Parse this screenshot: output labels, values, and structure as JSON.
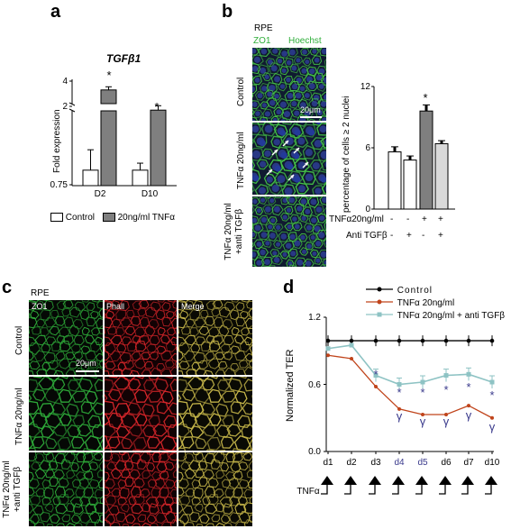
{
  "panels": {
    "a": {
      "letter": "a",
      "gene": "TGFβ1",
      "ylabel": "Fold expression",
      "yticks": [
        "4",
        "2",
        "0.75"
      ],
      "categories": [
        "D2",
        "D10"
      ],
      "star": "*",
      "legend": [
        "Control",
        "20ng/ml TNFα"
      ]
    },
    "b": {
      "letter": "b",
      "cell": "RPE",
      "stain1": "ZO1",
      "stain2": "Hoechst",
      "rows": [
        "Control",
        "TNFα 20ng/ml",
        "TNFα 20ng/ml +anti TGFβ"
      ],
      "scale": "20μm",
      "ylabel": "percentage of cells ≥ 2 nuclei",
      "yticks": [
        "12",
        "6",
        "0"
      ],
      "star": "*",
      "cond_labels": [
        "TNFα20ng/ml",
        "Anti TGFβ"
      ],
      "cond_tnf": [
        "-",
        "-",
        "+",
        "+"
      ],
      "cond_anti": [
        "-",
        "+",
        "-",
        "+"
      ]
    },
    "c": {
      "letter": "c",
      "cell": "RPE",
      "cols": [
        "ZO1",
        "Phall",
        "Merge"
      ],
      "rows": [
        "Control",
        "TNFα 20ng/ml",
        "TNFα 20ng/ml +anti TGFβ"
      ],
      "scale": "20μm"
    },
    "d": {
      "letter": "d",
      "ylabel": "Normalized TER",
      "yticks": [
        "1.2",
        "0.6",
        "0.0"
      ],
      "days": [
        "d1",
        "d2",
        "d3",
        "d4",
        "d5",
        "d6",
        "d7",
        "d10"
      ],
      "xrow": "TNFα",
      "legend": [
        "Control",
        "TNFα 20ng/ml",
        "TNFα 20ng/ml + anti TGFβ"
      ],
      "star": "*",
      "gamma": "γ"
    }
  },
  "colors": {
    "control": "#000000",
    "tnf": "#c0441b",
    "anti": "#8ec3c4",
    "star_blue": "#3a3a8c",
    "bar_gray": "#7f7f7f",
    "bar_light": "#d9d9d9",
    "zo1": "#2fae3a",
    "phall": "#d8262a",
    "nuclei": "#2b3c8f"
  },
  "chart_data": [
    {
      "type": "bar",
      "title": "TGFβ1",
      "ylabel": "Fold expression",
      "categories": [
        "D2",
        "D10"
      ],
      "series": [
        {
          "name": "Control",
          "values": [
            1.0,
            1.0
          ],
          "errors": [
            0.35,
            0.12
          ]
        },
        {
          "name": "20ng/ml TNFα",
          "values": [
            3.3,
            1.7
          ],
          "errors": [
            0.25,
            0.35
          ]
        }
      ]
    },
    {
      "type": "bar",
      "ylabel": "percentage of cells ≥ 2 nuclei",
      "ylim": [
        0,
        12
      ],
      "categories": [
        "1",
        "2",
        "3",
        "4"
      ],
      "values": [
        5.6,
        4.8,
        9.6,
        6.4
      ],
      "errors": [
        0.5,
        0.4,
        0.6,
        0.3
      ]
    },
    {
      "type": "line",
      "ylabel": "Normalized TER",
      "ylim": [
        0,
        1.2
      ],
      "x": [
        "d1",
        "d2",
        "d3",
        "d4",
        "d5",
        "d6",
        "d7",
        "d10"
      ],
      "series": [
        {
          "name": "Control",
          "values": [
            0.99,
            0.99,
            0.99,
            0.99,
            0.99,
            0.99,
            0.99,
            0.99
          ]
        },
        {
          "name": "TNFα 20ng/ml",
          "values": [
            0.86,
            0.83,
            0.58,
            0.38,
            0.33,
            0.33,
            0.41,
            0.3
          ]
        },
        {
          "name": "TNFα 20ng/ml + anti TGFβ",
          "values": [
            0.92,
            0.95,
            0.68,
            0.6,
            0.62,
            0.68,
            0.69,
            0.62
          ]
        }
      ]
    }
  ]
}
